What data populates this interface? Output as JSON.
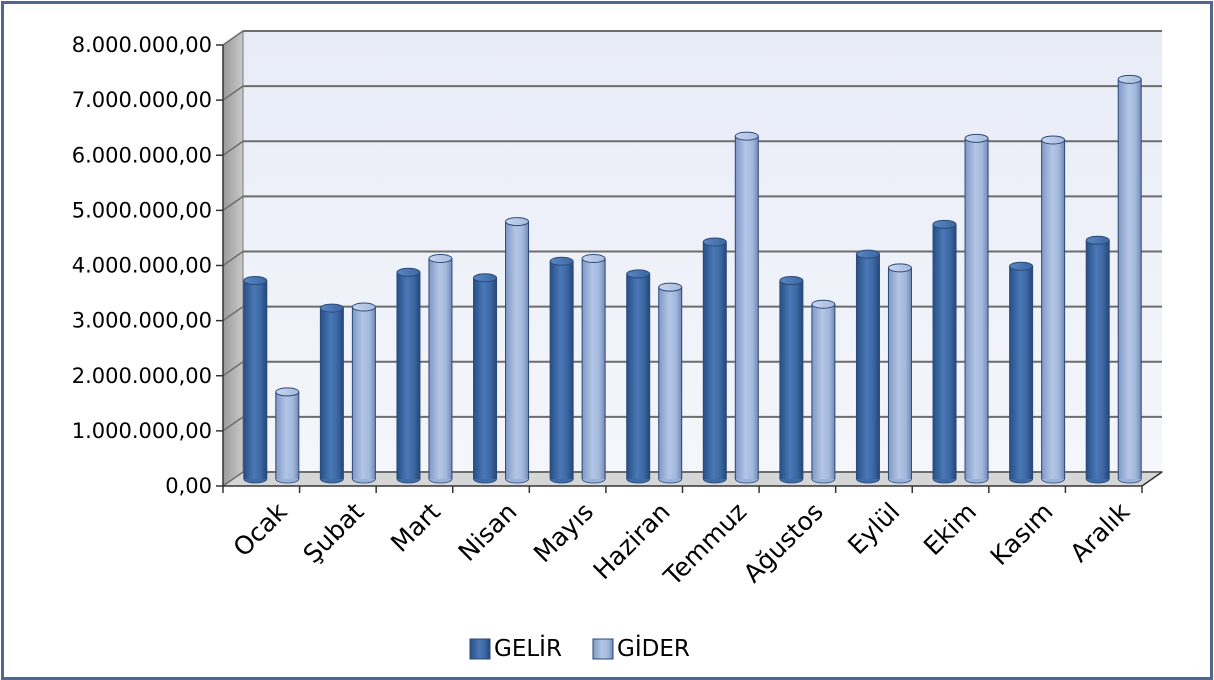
{
  "chart_data": {
    "type": "bar",
    "title": "",
    "xlabel": "",
    "ylabel": "",
    "categories": [
      "Ocak",
      "Şubat",
      "Mart",
      "Nisan",
      "Mayıs",
      "Haziran",
      "Temmuz",
      "Ağustos",
      "Eylül",
      "Ekim",
      "Kasım",
      "Aralık"
    ],
    "series": [
      {
        "name": "GELİR",
        "color": "#3f6ca7",
        "values": [
          3600000,
          3100000,
          3750000,
          3650000,
          3950000,
          3720000,
          4300000,
          3600000,
          4080000,
          4620000,
          3860000,
          4330000
        ]
      },
      {
        "name": "GİDER",
        "color": "#9ab2da",
        "values": [
          1580000,
          3120000,
          4000000,
          4670000,
          4000000,
          3480000,
          6220000,
          3170000,
          3830000,
          6180000,
          6150000,
          7250000
        ]
      }
    ],
    "ylim": [
      0,
      8000000
    ],
    "yticks": [
      "0,00",
      "1.000.000,00",
      "2.000.000,00",
      "3.000.000,00",
      "4.000.000,00",
      "5.000.000,00",
      "6.000.000,00",
      "7.000.000,00",
      "8.000.000,00"
    ],
    "grid": true,
    "legend_position": "bottom",
    "style": "3d-cylinder"
  }
}
